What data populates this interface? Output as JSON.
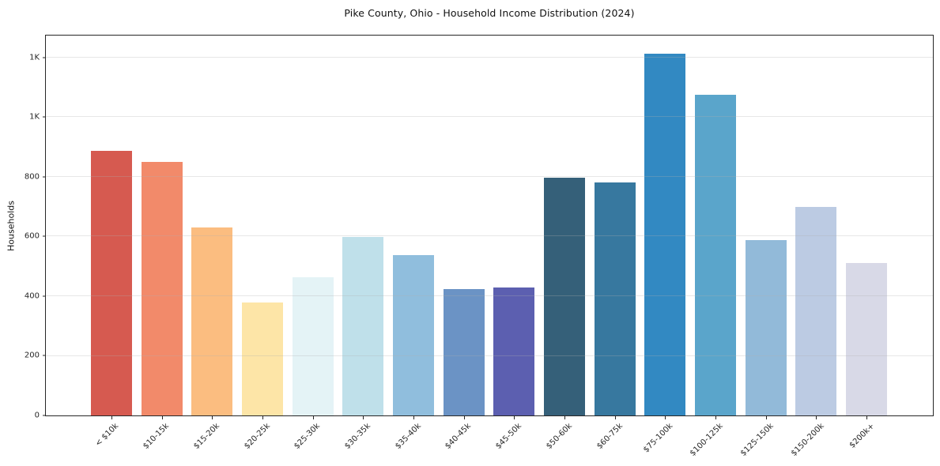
{
  "chart_data": {
    "type": "bar",
    "title": "Pike County, Ohio - Household Income Distribution (2024)",
    "xlabel": "",
    "ylabel": "Households",
    "categories": [
      "< $10k",
      "$10-15k",
      "$15-20k",
      "$20-25k",
      "$25-30k",
      "$30-35k",
      "$35-40k",
      "$40-45k",
      "$45-50k",
      "$50-60k",
      "$60-75k",
      "$75-100k",
      "$100-125k",
      "$125-150k",
      "$150-200k",
      "$200k+"
    ],
    "values": [
      888,
      851,
      630,
      378,
      464,
      598,
      538,
      423,
      428,
      798,
      782,
      1213,
      1075,
      587,
      698,
      510
    ],
    "bar_colors": [
      "#d65a50",
      "#f28a6a",
      "#fbbd80",
      "#fde5a7",
      "#e4f3f6",
      "#bfe0ea",
      "#90bedd",
      "#6b93c5",
      "#5c5fb0",
      "#356079",
      "#37789f",
      "#3289c2",
      "#5aa5cb",
      "#92bad9",
      "#bccbe3",
      "#d8d9e7"
    ],
    "ylim": [
      0,
      1274
    ],
    "yticks": [
      {
        "value": 0,
        "label": "0"
      },
      {
        "value": 200,
        "label": "200"
      },
      {
        "value": 400,
        "label": "400"
      },
      {
        "value": 600,
        "label": "600"
      },
      {
        "value": 800,
        "label": "800"
      },
      {
        "value": 1000,
        "label": "1K"
      },
      {
        "value": 1200,
        "label": "1K"
      }
    ],
    "grid": "horizontal",
    "legend": "none",
    "background": "#ffffff"
  }
}
